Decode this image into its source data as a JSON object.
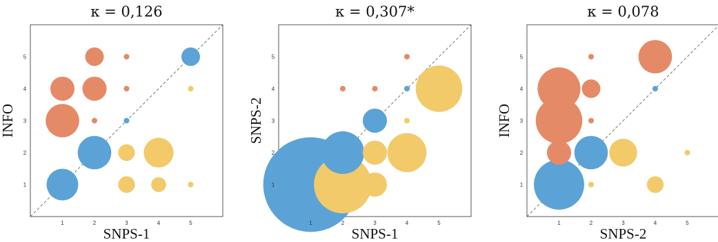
{
  "chart_data": [
    {
      "type": "scatter",
      "title": "κ = 0,126",
      "xlabel": "SNPS-1",
      "ylabel": "INFO",
      "xlim": [
        0,
        6
      ],
      "ylim": [
        0,
        6
      ],
      "ticks": [
        "1",
        "2",
        "3",
        "4",
        "5"
      ],
      "diagonal": "dashed",
      "colors": {
        "agree": "#5ba3d6",
        "above": "#e58a67",
        "below": "#f2ca6a"
      },
      "points": [
        {
          "x": 1,
          "y": 1,
          "size": 1.7,
          "group": "agree"
        },
        {
          "x": 2,
          "y": 2,
          "size": 1.8,
          "group": "agree"
        },
        {
          "x": 3,
          "y": 3,
          "size": 0.3,
          "group": "agree"
        },
        {
          "x": 5,
          "y": 5,
          "size": 1.0,
          "group": "agree"
        },
        {
          "x": 1,
          "y": 3,
          "size": 1.8,
          "group": "above"
        },
        {
          "x": 1,
          "y": 4,
          "size": 1.3,
          "group": "above"
        },
        {
          "x": 2,
          "y": 3,
          "size": 0.3,
          "group": "above"
        },
        {
          "x": 2,
          "y": 4,
          "size": 1.3,
          "group": "above"
        },
        {
          "x": 2,
          "y": 5,
          "size": 1.0,
          "group": "above"
        },
        {
          "x": 3,
          "y": 4,
          "size": 0.3,
          "group": "above"
        },
        {
          "x": 3,
          "y": 5,
          "size": 0.3,
          "group": "above"
        },
        {
          "x": 3,
          "y": 1,
          "size": 0.9,
          "group": "below"
        },
        {
          "x": 3,
          "y": 2,
          "size": 0.9,
          "group": "below"
        },
        {
          "x": 4,
          "y": 1,
          "size": 0.8,
          "group": "below"
        },
        {
          "x": 4,
          "y": 2,
          "size": 1.6,
          "group": "below"
        },
        {
          "x": 5,
          "y": 1,
          "size": 0.3,
          "group": "below"
        },
        {
          "x": 5,
          "y": 4,
          "size": 0.3,
          "group": "below"
        }
      ]
    },
    {
      "type": "scatter",
      "title": "κ = 0,307*",
      "xlabel": "SNPS-1",
      "ylabel": "SNPS-2",
      "xlim": [
        0,
        6
      ],
      "ylim": [
        0,
        6
      ],
      "ticks": [
        "1",
        "2",
        "3",
        "4",
        "5"
      ],
      "diagonal": "dashed",
      "colors": {
        "agree": "#5ba3d6",
        "above": "#e58a67",
        "below": "#f2ca6a"
      },
      "points": [
        {
          "x": 1,
          "y": 1,
          "size": 5.1,
          "group": "agree"
        },
        {
          "x": 2,
          "y": 2,
          "size": 2.3,
          "group": "agree"
        },
        {
          "x": 3,
          "y": 3,
          "size": 1.3,
          "group": "agree"
        },
        {
          "x": 4,
          "y": 4,
          "size": 0.3,
          "group": "agree"
        },
        {
          "x": 2,
          "y": 4,
          "size": 0.3,
          "group": "above"
        },
        {
          "x": 3,
          "y": 4,
          "size": 0.3,
          "group": "above"
        },
        {
          "x": 4,
          "y": 5,
          "size": 0.3,
          "group": "above"
        },
        {
          "x": 2,
          "y": 1,
          "size": 3.1,
          "group": "below"
        },
        {
          "x": 3,
          "y": 1,
          "size": 1.3,
          "group": "below"
        },
        {
          "x": 3,
          "y": 2,
          "size": 1.3,
          "group": "below"
        },
        {
          "x": 4,
          "y": 2,
          "size": 2.1,
          "group": "below"
        },
        {
          "x": 4,
          "y": 3,
          "size": 0.3,
          "group": "below"
        },
        {
          "x": 5,
          "y": 4,
          "size": 2.5,
          "group": "below"
        }
      ]
    },
    {
      "type": "scatter",
      "title": "κ = 0,078",
      "xlabel": "SNPS-2",
      "ylabel": "INFO",
      "xlim": [
        0,
        6
      ],
      "ylim": [
        0,
        6
      ],
      "ticks": [
        "1",
        "2",
        "3",
        "4",
        "5"
      ],
      "diagonal": "dashed",
      "colors": {
        "agree": "#5ba3d6",
        "above": "#e58a67",
        "below": "#f2ca6a"
      },
      "points": [
        {
          "x": 1,
          "y": 1,
          "size": 2.7,
          "group": "agree"
        },
        {
          "x": 2,
          "y": 2,
          "size": 1.8,
          "group": "agree"
        },
        {
          "x": 4,
          "y": 4,
          "size": 0.3,
          "group": "agree"
        },
        {
          "x": 1,
          "y": 2,
          "size": 1.3,
          "group": "above"
        },
        {
          "x": 1,
          "y": 3,
          "size": 2.5,
          "group": "above"
        },
        {
          "x": 1,
          "y": 4,
          "size": 2.3,
          "group": "above"
        },
        {
          "x": 2,
          "y": 3,
          "size": 0.3,
          "group": "above"
        },
        {
          "x": 2,
          "y": 4,
          "size": 1.0,
          "group": "above"
        },
        {
          "x": 2,
          "y": 5,
          "size": 0.3,
          "group": "above"
        },
        {
          "x": 4,
          "y": 5,
          "size": 1.8,
          "group": "above"
        },
        {
          "x": 2,
          "y": 1,
          "size": 0.3,
          "group": "below"
        },
        {
          "x": 3,
          "y": 2,
          "size": 1.5,
          "group": "below"
        },
        {
          "x": 4,
          "y": 1,
          "size": 0.9,
          "group": "below"
        },
        {
          "x": 5,
          "y": 2,
          "size": 0.3,
          "group": "below"
        }
      ]
    }
  ]
}
